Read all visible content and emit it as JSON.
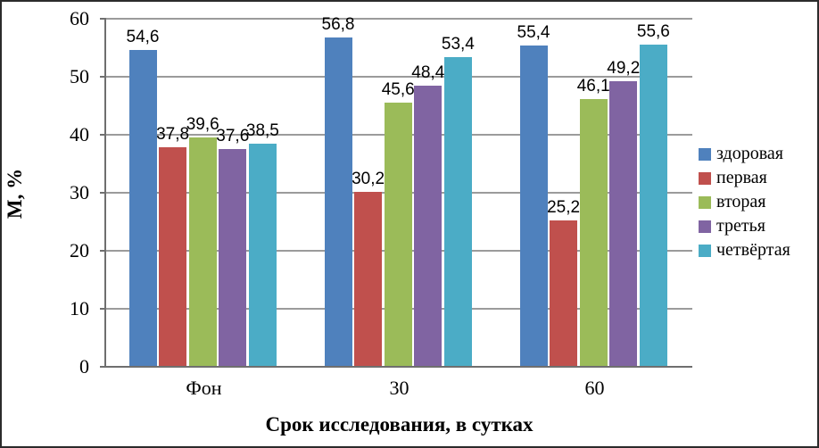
{
  "chart_data": {
    "type": "bar",
    "title": "",
    "categories": [
      "Фон",
      "30",
      "60"
    ],
    "series": [
      {
        "name": "здоровая",
        "color": "#4F81BD",
        "values": [
          54.6,
          56.8,
          55.4
        ]
      },
      {
        "name": "первая",
        "color": "#C0504D",
        "values": [
          37.8,
          30.2,
          25.2
        ]
      },
      {
        "name": "вторая",
        "color": "#9BBB59",
        "values": [
          39.6,
          45.6,
          46.1
        ]
      },
      {
        "name": "третья",
        "color": "#8064A2",
        "values": [
          37.6,
          48.4,
          49.2
        ]
      },
      {
        "name": "четвёртая",
        "color": "#4BACC6",
        "values": [
          38.5,
          53.4,
          55.6
        ]
      }
    ],
    "data_labels": [
      [
        "54,6",
        "56,8",
        "55,4"
      ],
      [
        "37,8",
        "30,2",
        "25,2"
      ],
      [
        "39,6",
        "45,6",
        "46,1"
      ],
      [
        "37,6",
        "48,4",
        "49,2"
      ],
      [
        "38,5",
        "53,4",
        "55,6"
      ]
    ],
    "xlabel": "Срок исследования, в сутках",
    "ylabel": "М, %",
    "ylim": [
      0,
      60
    ],
    "yticks": [
      0,
      10,
      20,
      30,
      40,
      50,
      60
    ],
    "grid": true,
    "legend_position": "right",
    "decimal_separator": ","
  },
  "colors": {
    "gridline": "#9b9b9b",
    "axis": "#6f6f6f",
    "border": "#2b2b2b",
    "background": "#ffffff",
    "text": "#000000"
  }
}
